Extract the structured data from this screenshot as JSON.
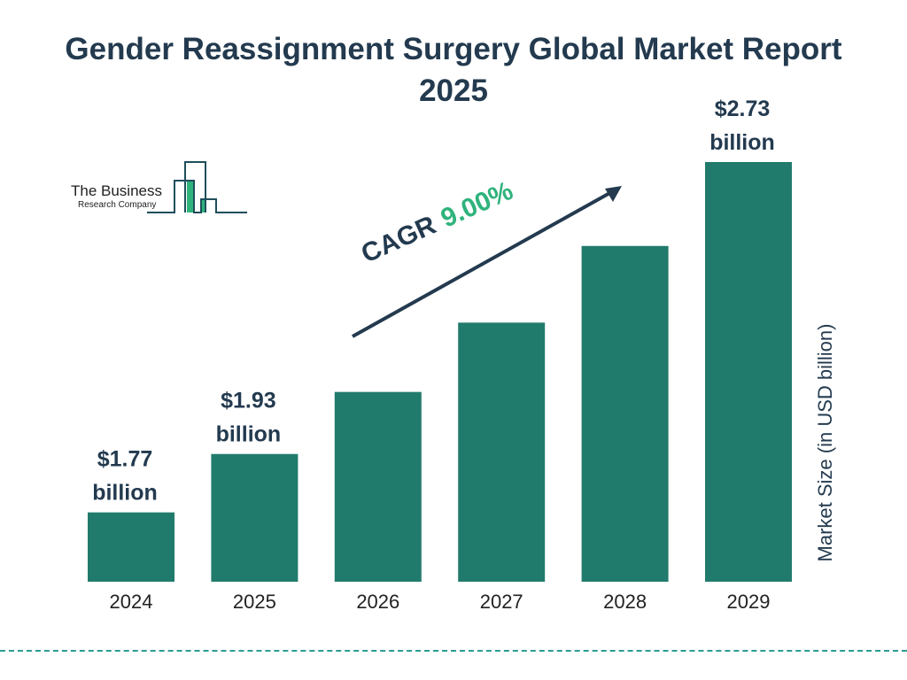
{
  "chart_data": {
    "type": "bar",
    "title": "Gender Reassignment Surgery Global Market Report 2025",
    "categories": [
      "2024",
      "2025",
      "2026",
      "2027",
      "2028",
      "2029"
    ],
    "values": [
      1.77,
      1.93,
      2.1,
      2.29,
      2.5,
      2.73
    ],
    "value_labels": [
      [
        "$1.77",
        "billion"
      ],
      [
        "$1.93",
        "billion"
      ],
      null,
      null,
      null,
      [
        "$2.73",
        "billion"
      ]
    ],
    "xlabel": "",
    "ylabel": "Market Size (in USD billion)",
    "ylim": [
      1.58,
      2.73
    ],
    "grid": false,
    "bar_color": "#217b6c",
    "annotation": {
      "label": "CAGR",
      "value": "9.00%",
      "value_color": "#2fb37c"
    }
  },
  "logo": {
    "line1": "The Business",
    "line2": "Research Company"
  }
}
